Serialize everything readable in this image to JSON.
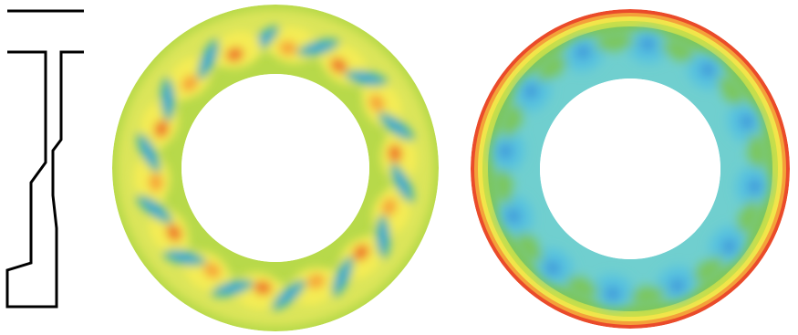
{
  "figure": {
    "panels": [
      {
        "id": "profile",
        "kind": "cross-section-outline",
        "stroke_color": "#000000"
      },
      {
        "id": "ring-left",
        "kind": "contour-ring",
        "palette": {
          "background": "#b7d94a",
          "light": "#dbe55a",
          "yellow": "#f4ec55",
          "orange": "#f6a638",
          "red": "#ef7a2c",
          "teal": "#4fb4a8",
          "blue": "#3fa8d6",
          "green": "#88c451"
        }
      },
      {
        "id": "ring-right",
        "kind": "contour-ring",
        "palette": {
          "core": "#6fcfcf",
          "cyan": "#57c2e0",
          "blue": "#3a8fd8",
          "green": "#7cc65c",
          "lime": "#c9df4a",
          "yellow": "#f2e54a",
          "orange": "#f4a13a",
          "red": "#ea4b2a"
        }
      }
    ]
  }
}
